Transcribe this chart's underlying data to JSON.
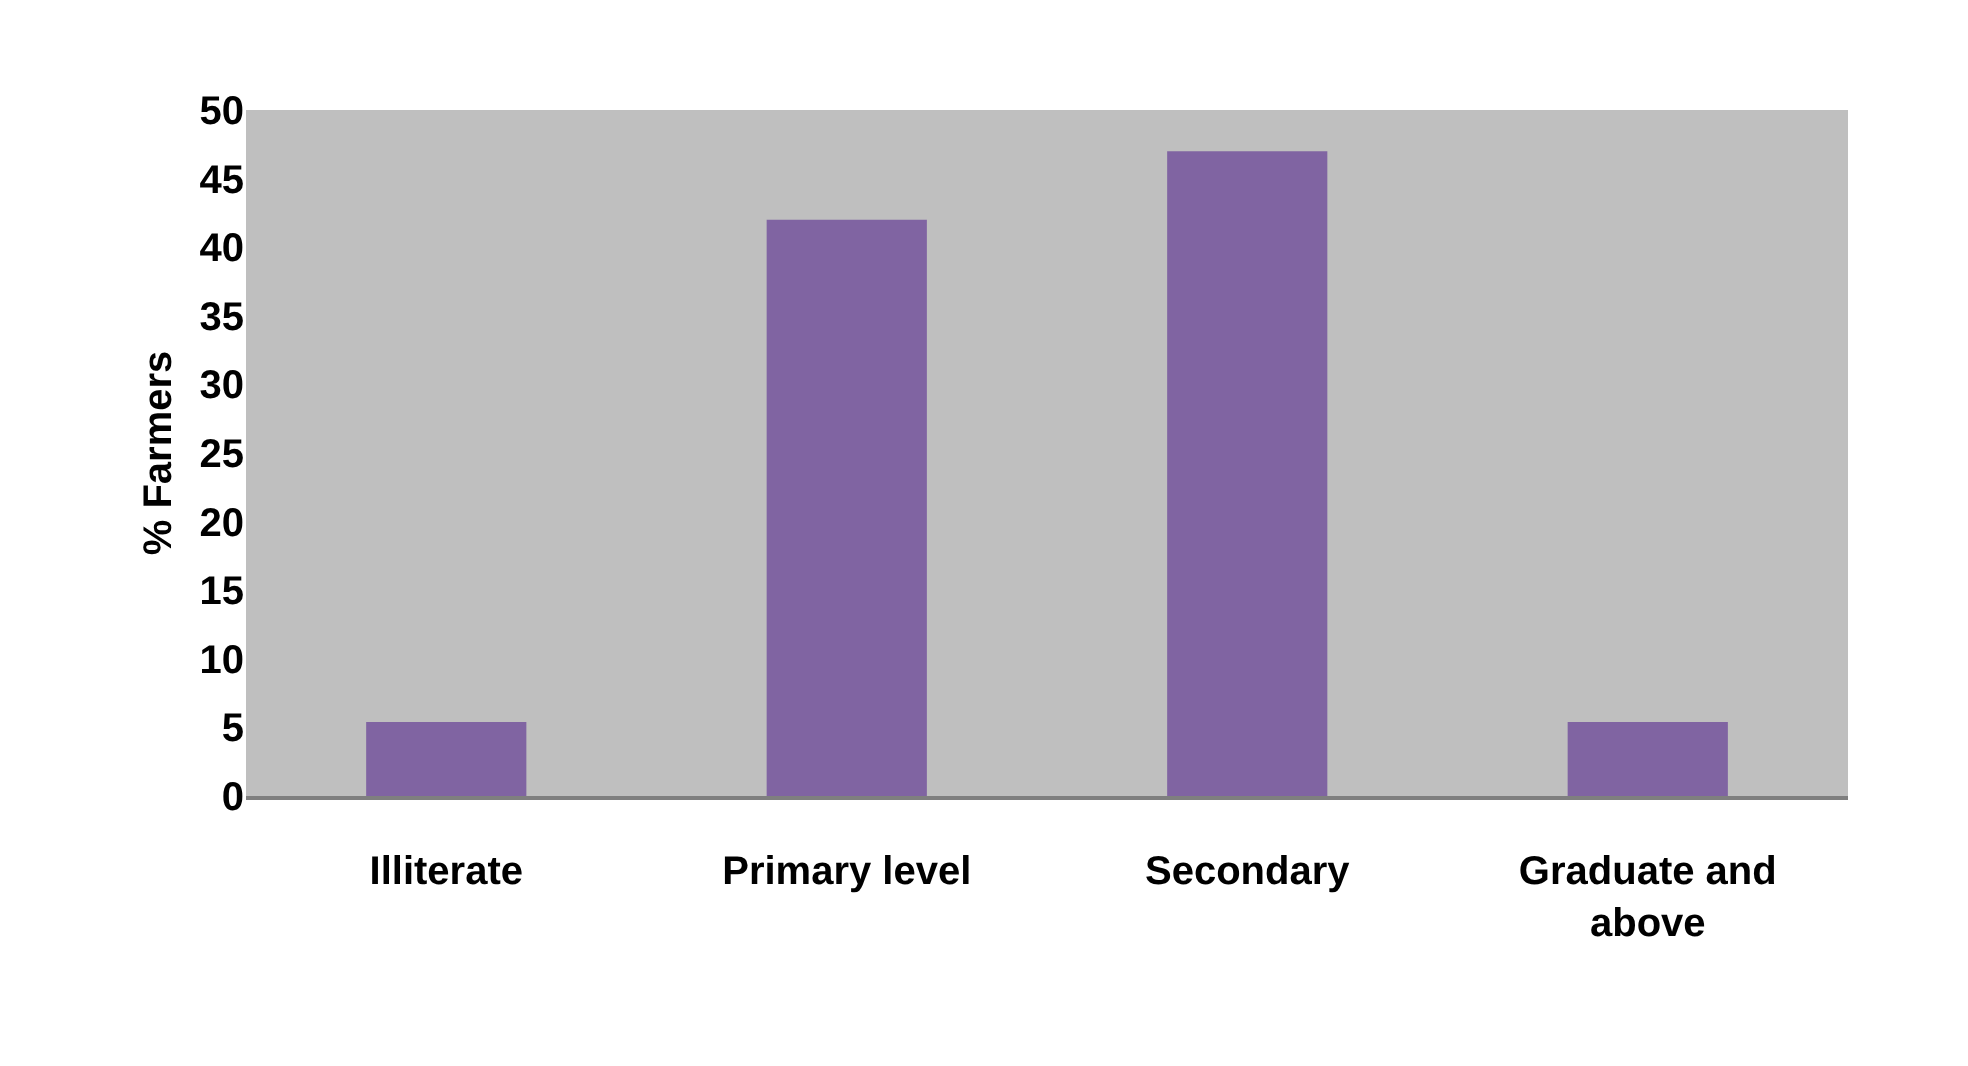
{
  "chart_data": {
    "type": "bar",
    "ylabel": "% Farmers",
    "categories": [
      "Illiterate",
      "Primary level",
      "Secondary",
      "Graduate and above"
    ],
    "values": [
      5.4,
      42,
      47,
      5.4
    ],
    "color": "#8064a2",
    "ylim": [
      0,
      50
    ],
    "yticks": [
      0,
      5,
      10,
      15,
      20,
      25,
      30,
      35,
      40,
      45,
      50
    ],
    "grid": false,
    "legend": false
  }
}
